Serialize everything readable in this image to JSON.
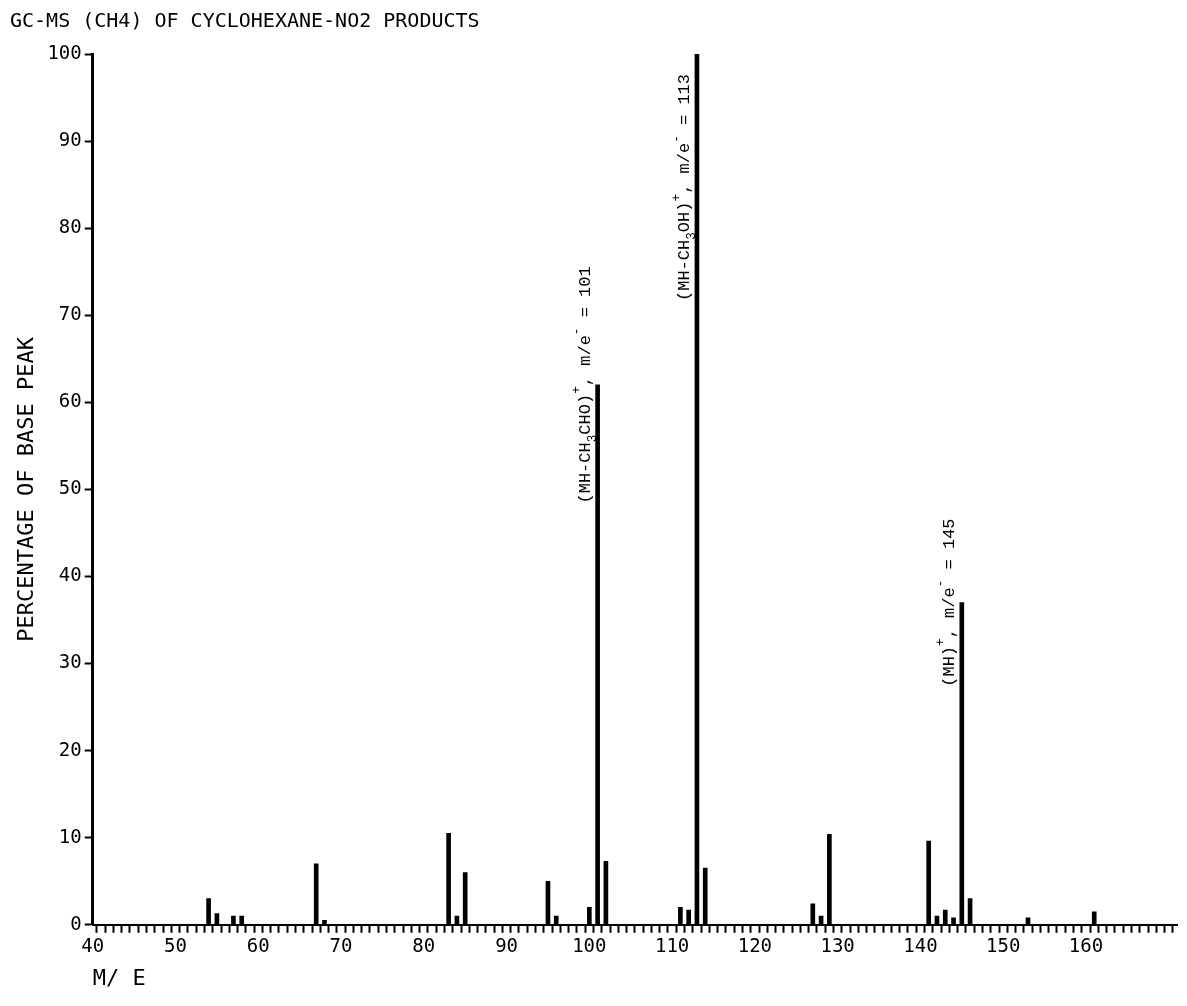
{
  "chart_data": {
    "type": "bar",
    "title": "GC-MS (CH4) OF CYCLOHEXANE-NO2 PRODUCTS",
    "xlabel": "M/ E",
    "ylabel": "PERCENTAGE OF BASE PEAK",
    "x": [
      54,
      55,
      57,
      58,
      67,
      68,
      83,
      84,
      85,
      95,
      96,
      100,
      101,
      102,
      111,
      112,
      113,
      114,
      127,
      128,
      129,
      141,
      142,
      143,
      144,
      145,
      146,
      153,
      161
    ],
    "values": [
      3,
      1.3,
      1,
      1,
      7,
      0.5,
      10.5,
      1,
      6,
      5,
      1,
      2,
      62,
      7.3,
      2,
      1.7,
      100,
      6.5,
      2.4,
      1,
      10.4,
      9.6,
      1,
      1.7,
      0.8,
      37,
      3,
      0.8,
      1.5
    ],
    "color": "#000000",
    "xlim": [
      40,
      171
    ],
    "xticks": [
      40,
      {
        "value": 41,
        "label": null
      },
      {
        "value": 42,
        "label": null
      },
      {
        "value": 43,
        "label": null
      },
      {
        "value": 44,
        "label": null
      },
      {
        "value": 45,
        "label": null
      },
      {
        "value": 46,
        "label": null
      },
      {
        "value": 47,
        "label": null
      },
      {
        "value": 48,
        "label": null
      },
      {
        "value": 49,
        "label": null
      },
      50,
      {
        "value": 51,
        "label": null
      },
      {
        "value": 52,
        "label": null
      },
      {
        "value": 53,
        "label": null
      },
      {
        "value": 54,
        "label": null
      },
      {
        "value": 55,
        "label": null
      },
      {
        "value": 56,
        "label": null
      },
      {
        "value": 57,
        "label": null
      },
      {
        "value": 58,
        "label": null
      },
      {
        "value": 59,
        "label": null
      },
      60,
      {
        "value": 61,
        "label": null
      },
      {
        "value": 62,
        "label": null
      },
      {
        "value": 63,
        "label": null
      },
      {
        "value": 64,
        "label": null
      },
      {
        "value": 65,
        "label": null
      },
      {
        "value": 66,
        "label": null
      },
      {
        "value": 67,
        "label": null
      },
      {
        "value": 68,
        "label": null
      },
      {
        "value": 69,
        "label": null
      },
      70,
      {
        "value": 71,
        "label": null
      },
      {
        "value": 72,
        "label": null
      },
      {
        "value": 73,
        "label": null
      },
      {
        "value": 74,
        "label": null
      },
      {
        "value": 75,
        "label": null
      },
      {
        "value": 76,
        "label": null
      },
      {
        "value": 77,
        "label": null
      },
      {
        "value": 78,
        "label": null
      },
      {
        "value": 79,
        "label": null
      },
      80,
      {
        "value": 81,
        "label": null
      },
      {
        "value": 82,
        "label": null
      },
      {
        "value": 83,
        "label": null
      },
      {
        "value": 84,
        "label": null
      },
      {
        "value": 85,
        "label": null
      },
      {
        "value": 86,
        "label": null
      },
      {
        "value": 87,
        "label": null
      },
      {
        "value": 88,
        "label": null
      },
      {
        "value": 89,
        "label": null
      },
      90,
      {
        "value": 91,
        "label": null
      },
      {
        "value": 92,
        "label": null
      },
      {
        "value": 93,
        "label": null
      },
      {
        "value": 94,
        "label": null
      },
      {
        "value": 95,
        "label": null
      },
      {
        "value": 96,
        "label": null
      },
      {
        "value": 97,
        "label": null
      },
      {
        "value": 98,
        "label": null
      },
      {
        "value": 99,
        "label": null
      },
      100,
      {
        "value": 101,
        "label": null
      },
      {
        "value": 102,
        "label": null
      },
      {
        "value": 103,
        "label": null
      },
      {
        "value": 104,
        "label": null
      },
      {
        "value": 105,
        "label": null
      },
      {
        "value": 106,
        "label": null
      },
      {
        "value": 107,
        "label": null
      },
      {
        "value": 108,
        "label": null
      },
      {
        "value": 109,
        "label": null
      },
      110,
      {
        "value": 111,
        "label": null
      },
      {
        "value": 112,
        "label": null
      },
      {
        "value": 113,
        "label": null
      },
      {
        "value": 114,
        "label": null
      },
      {
        "value": 115,
        "label": null
      },
      {
        "value": 116,
        "label": null
      },
      {
        "value": 117,
        "label": null
      },
      {
        "value": 118,
        "label": null
      },
      {
        "value": 119,
        "label": null
      },
      120,
      {
        "value": 121,
        "label": null
      },
      {
        "value": 122,
        "label": null
      },
      {
        "value": 123,
        "label": null
      },
      {
        "value": 124,
        "label": null
      },
      {
        "value": 125,
        "label": null
      },
      {
        "value": 126,
        "label": null
      },
      {
        "value": 127,
        "label": null
      },
      {
        "value": 128,
        "label": null
      },
      {
        "value": 129,
        "label": null
      },
      130,
      {
        "value": 131,
        "label": null
      },
      {
        "value": 132,
        "label": null
      },
      {
        "value": 133,
        "label": null
      },
      {
        "value": 134,
        "label": null
      },
      {
        "value": 135,
        "label": null
      },
      {
        "value": 136,
        "label": null
      },
      {
        "value": 137,
        "label": null
      },
      {
        "value": 138,
        "label": null
      },
      {
        "value": 139,
        "label": null
      },
      140,
      {
        "value": 141,
        "label": null
      },
      {
        "value": 142,
        "label": null
      },
      {
        "value": 143,
        "label": null
      },
      {
        "value": 144,
        "label": null
      },
      {
        "value": 145,
        "label": null
      },
      {
        "value": 146,
        "label": null
      },
      {
        "value": 147,
        "label": null
      },
      {
        "value": 148,
        "label": null
      },
      {
        "value": 149,
        "label": null
      },
      150,
      {
        "value": 151,
        "label": null
      },
      {
        "value": 152,
        "label": null
      },
      {
        "value": 153,
        "label": null
      },
      {
        "value": 154,
        "label": null
      },
      {
        "value": 155,
        "label": null
      },
      {
        "value": 156,
        "label": null
      },
      {
        "value": 157,
        "label": null
      },
      {
        "value": 158,
        "label": null
      },
      {
        "value": 159,
        "label": null
      },
      160,
      {
        "value": 161,
        "label": null
      },
      {
        "value": 162,
        "label": null
      },
      {
        "value": 163,
        "label": null
      },
      {
        "value": 164,
        "label": null
      },
      {
        "value": 165,
        "label": null
      },
      {
        "value": 166,
        "label": null
      },
      {
        "value": 167,
        "label": null
      },
      {
        "value": 168,
        "label": null
      },
      {
        "value": 169,
        "label": null
      },
      {
        "value": 170,
        "label": null
      }
    ],
    "ylim": [
      0,
      100
    ],
    "yticks": [
      0,
      10,
      20,
      30,
      40,
      50,
      60,
      70,
      80,
      90,
      100
    ],
    "annotations": [
      {
        "text": "(MH-CH$_{3}$CHO)$^{+}$, m/e$^{-}$ = 101",
        "x": 101,
        "y": 62
      },
      {
        "text": "(MH-CH$_{3}$OH)$^{+}$, m/e$^{-}$ = 113",
        "x": 113,
        "y": 100
      },
      {
        "text": "(MH)$^{+}$, m/e$^{-}$ = 145",
        "x": 145,
        "y": 37
      }
    ]
  }
}
